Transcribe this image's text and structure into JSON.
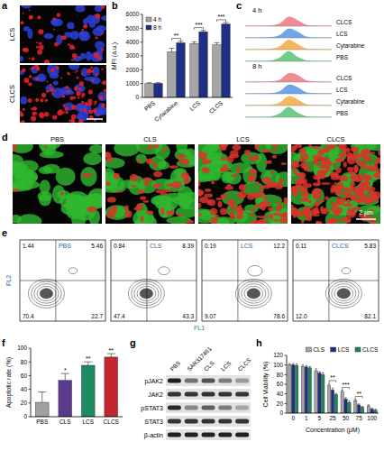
{
  "chart_data": [
    {
      "panel_label": "b",
      "type": "bar",
      "y_label": "MFI (a.u.)",
      "categories": [
        "PBS",
        "Cytarabine",
        "LCS",
        "CLCS"
      ],
      "series": [
        {
          "name": "4 h",
          "color": "#a6a6a6",
          "values": [
            1000,
            3300,
            3900,
            3800
          ],
          "errors": [
            60,
            250,
            120,
            150
          ]
        },
        {
          "name": "8 h",
          "color": "#1f2f86",
          "values": [
            1010,
            3950,
            4750,
            5300
          ],
          "errors": [
            50,
            120,
            100,
            120
          ]
        }
      ],
      "ylim": [
        0,
        6000
      ],
      "yticks": [
        0,
        1000,
        2000,
        3000,
        4000,
        5000,
        6000
      ],
      "legend": "upper left",
      "annotations": [
        {
          "category": "Cytarabine",
          "text": "**"
        },
        {
          "category": "LCS",
          "text": "***"
        },
        {
          "category": "CLCS",
          "text": "***"
        }
      ]
    },
    {
      "panel_label": "c",
      "type": "ridgeline",
      "x": [
        0,
        1,
        2,
        3,
        4,
        5,
        6,
        7,
        8,
        9,
        10
      ],
      "xlim": [
        0,
        10
      ],
      "ylim": [
        0,
        1
      ],
      "tick_labels": false,
      "groups": [
        {
          "name": "4 h",
          "series": [
            {
              "name": "CLCS",
              "color": "#ec6f78",
              "values": [
                0,
                0,
                0.01,
                0.04,
                0.25,
                0.92,
                0.6,
                0.12,
                0.02,
                0,
                0
              ]
            },
            {
              "name": "LCS",
              "color": "#4f8fe0",
              "values": [
                0,
                0,
                0.01,
                0.04,
                0.25,
                0.9,
                0.62,
                0.12,
                0.02,
                0,
                0
              ]
            },
            {
              "name": "Cytarabine",
              "color": "#f2a33a",
              "values": [
                0,
                0,
                0.01,
                0.05,
                0.3,
                0.95,
                0.55,
                0.1,
                0.02,
                0,
                0
              ]
            },
            {
              "name": "PBS",
              "color": "#4cbf6a",
              "values": [
                0,
                0,
                0.01,
                0.06,
                0.35,
                1,
                0.45,
                0.08,
                0.01,
                0,
                0
              ]
            }
          ]
        },
        {
          "name": "8 h",
          "series": [
            {
              "name": "CLCS",
              "color": "#ec6f78",
              "values": [
                0,
                0,
                0.01,
                0.03,
                0.2,
                0.85,
                0.7,
                0.16,
                0.03,
                0,
                0
              ]
            },
            {
              "name": "LCS",
              "color": "#4f8fe0",
              "values": [
                0,
                0,
                0.01,
                0.03,
                0.22,
                0.88,
                0.66,
                0.14,
                0.02,
                0,
                0
              ]
            },
            {
              "name": "Cytarabine",
              "color": "#f2a33a",
              "values": [
                0,
                0,
                0.01,
                0.04,
                0.27,
                0.92,
                0.6,
                0.12,
                0.02,
                0,
                0
              ]
            },
            {
              "name": "PBS",
              "color": "#4cbf6a",
              "values": [
                0,
                0,
                0.01,
                0.06,
                0.35,
                1,
                0.45,
                0.08,
                0.01,
                0,
                0
              ]
            }
          ]
        }
      ]
    },
    {
      "panel_label": "f",
      "type": "bar",
      "y_label": "Apoptotic rate (%)",
      "categories": [
        "PBS",
        "CLS",
        "LCS",
        "CLCS"
      ],
      "values": [
        21,
        53,
        75,
        87
      ],
      "errors": [
        15,
        10,
        5,
        5
      ],
      "colors": [
        "#a0a0a0",
        "#5b3a8e",
        "#1d8a5f",
        "#c4262e"
      ],
      "ylim": [
        0,
        100
      ],
      "yticks": [
        0,
        20,
        40,
        60,
        80,
        100
      ],
      "annotations": [
        {
          "category": "CLS",
          "text": "*"
        },
        {
          "category": "LCS",
          "text": "**"
        },
        {
          "category": "CLCS",
          "text": "**"
        }
      ]
    },
    {
      "panel_label": "h",
      "type": "bar",
      "y_label": "Cell Viability (%)",
      "x_label": "Concentration (μM)",
      "categories": [
        0,
        1,
        5,
        25,
        50,
        75,
        100
      ],
      "series": [
        {
          "name": "CLS",
          "color": "#a6a6a6",
          "values": [
            100,
            97,
            88,
            58,
            45,
            26,
            15
          ],
          "errors": [
            3,
            3,
            4,
            4,
            3,
            3,
            2
          ]
        },
        {
          "name": "LCS",
          "color": "#1f2f86",
          "values": [
            100,
            96,
            83,
            48,
            29,
            17,
            8
          ],
          "errors": [
            3,
            3,
            3,
            4,
            3,
            2,
            2
          ]
        },
        {
          "name": "CLCS",
          "color": "#1a8a5a",
          "values": [
            99,
            94,
            80,
            38,
            22,
            12,
            6
          ],
          "errors": [
            3,
            3,
            4,
            3,
            3,
            2,
            2
          ]
        }
      ],
      "ylim": [
        0,
        120
      ],
      "yticks": [
        0,
        20,
        40,
        60,
        80,
        100,
        120
      ],
      "legend": "top",
      "annotations": [
        {
          "category": 25,
          "text": "**"
        },
        {
          "category": 50,
          "text": "***"
        },
        {
          "category": 75,
          "text": "**"
        }
      ]
    }
  ],
  "micrographs": [
    {
      "panel_label": "a",
      "images": [
        "LCS",
        "CLCS"
      ]
    },
    {
      "panel_label": "d",
      "images": [
        "PBS",
        "CLS",
        "LCS",
        "CLCS"
      ],
      "scale_bar": "2 μm"
    }
  ],
  "flow": {
    "panel_label": "e",
    "x_label": "FL1",
    "y_label": "FL2",
    "plots": [
      {
        "title": "PBS",
        "upper_left": 1.44,
        "upper_right": 5.46,
        "lower_left": 70.4,
        "lower_right": 22.7
      },
      {
        "title": "CLS",
        "upper_left": 0.84,
        "upper_right": 8.39,
        "lower_left": 47.4,
        "lower_right": 43.3
      },
      {
        "title": "LCS",
        "upper_left": 0.19,
        "upper_right": 12.2,
        "lower_left": 9.07,
        "lower_right": 78.6
      },
      {
        "title": "CLCS",
        "upper_left": 0.11,
        "upper_right": 5.83,
        "lower_left": {
          "value": 12,
          "label": "12.0"
        },
        "lower_right": 82.1
      }
    ]
  },
  "blot": {
    "panel_label": "g",
    "lanes": [
      "PBS",
      "SAR317461",
      "CLS",
      "LCS",
      "CLCS"
    ],
    "rows": [
      {
        "name": "pJAK2",
        "intensities": [
          0.95,
          0.55,
          0.7,
          0.5,
          0.35
        ]
      },
      {
        "name": "JAK2",
        "intensities": [
          0.85,
          0.85,
          0.85,
          0.85,
          0.85
        ]
      },
      {
        "name": "pSTAT3",
        "intensities": [
          0.9,
          0.45,
          0.65,
          0.5,
          0.3
        ]
      },
      {
        "name": "STAT3",
        "intensities": [
          0.85,
          0.85,
          0.85,
          0.85,
          0.85
        ]
      },
      {
        "name": "β-actin",
        "intensities": [
          0.95,
          0.95,
          0.95,
          0.95,
          0.95
        ]
      }
    ]
  }
}
